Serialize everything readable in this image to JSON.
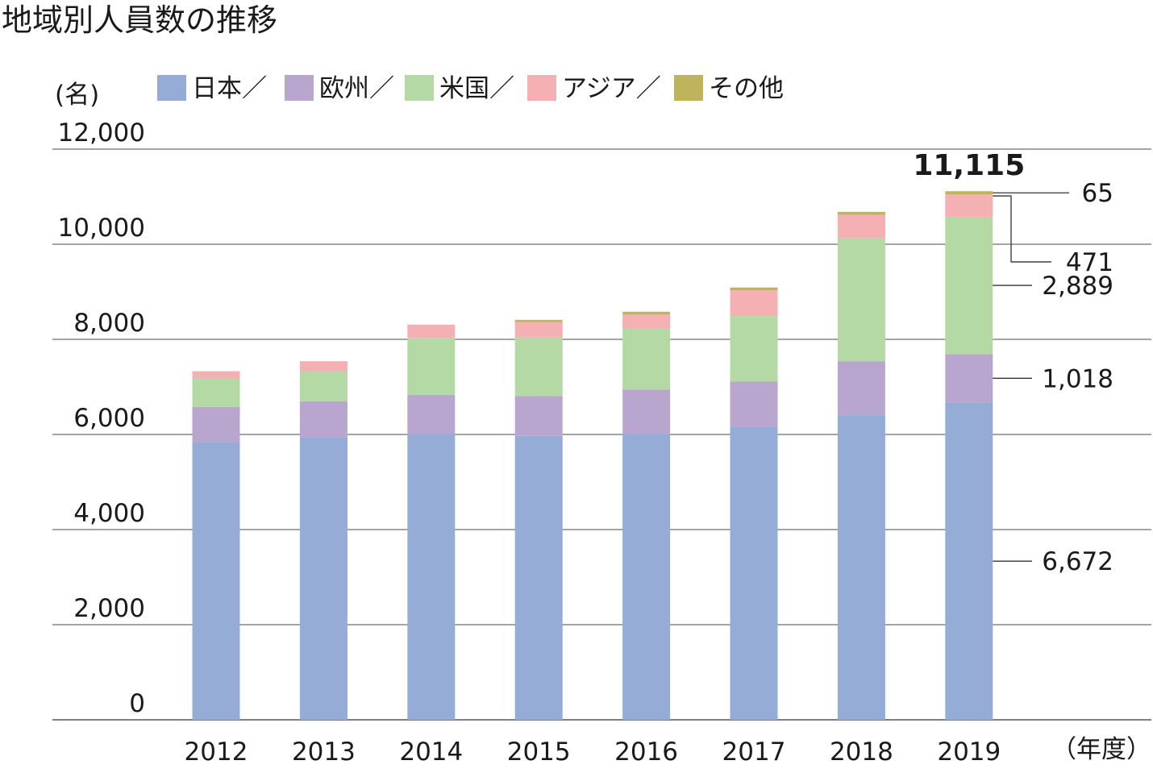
{
  "title": "地域別人員数の推移",
  "y_unit": "(名)",
  "x_unit": "（年度）",
  "legend_items": [
    {
      "label": "日本／",
      "series": "日本"
    },
    {
      "label": "欧州／",
      "series": "欧州"
    },
    {
      "label": "米国／",
      "series": "米国"
    },
    {
      "label": "アジア／",
      "series": "アジア"
    },
    {
      "label": "その他",
      "series": "その他"
    }
  ],
  "chart_data": {
    "type": "bar",
    "stacked": true,
    "title": "地域別人員数の推移",
    "xlabel": "（年度）",
    "ylabel": "(名)",
    "ylim": [
      0,
      12000
    ],
    "yticks": [
      0,
      2000,
      4000,
      6000,
      8000,
      10000,
      12000
    ],
    "ytick_labels": [
      "0",
      "2,000",
      "4,000",
      "6,000",
      "8,000",
      "10,000",
      "12,000"
    ],
    "grid": true,
    "legend_position": "top",
    "categories": [
      "2012",
      "2013",
      "2014",
      "2015",
      "2016",
      "2017",
      "2018",
      "2019"
    ],
    "series": [
      {
        "name": "日本",
        "color": "#95acd7",
        "values": [
          5840,
          5940,
          6010,
          5970,
          6010,
          6160,
          6420,
          6672
        ]
      },
      {
        "name": "欧州",
        "color": "#b9a6cf",
        "values": [
          740,
          760,
          820,
          840,
          930,
          950,
          1120,
          1018
        ]
      },
      {
        "name": "米国",
        "color": "#b4d9a4",
        "values": [
          590,
          630,
          1190,
          1230,
          1290,
          1380,
          2590,
          2889
        ]
      },
      {
        "name": "アジア",
        "color": "#f4b0b2",
        "values": [
          160,
          210,
          290,
          320,
          290,
          540,
          490,
          471
        ]
      },
      {
        "name": "その他",
        "color": "#c0b35d",
        "values": [
          0,
          0,
          0,
          50,
          60,
          60,
          60,
          65
        ]
      }
    ],
    "total_label": {
      "category": "2019",
      "text": "11,115"
    },
    "annotations": [
      {
        "category": "2019",
        "series": "その他",
        "text": "65"
      },
      {
        "category": "2019",
        "series": "アジア",
        "text": "471"
      },
      {
        "category": "2019",
        "series": "米国",
        "text": "2,889"
      },
      {
        "category": "2019",
        "series": "欧州",
        "text": "1,018"
      },
      {
        "category": "2019",
        "series": "日本",
        "text": "6,672"
      }
    ]
  }
}
